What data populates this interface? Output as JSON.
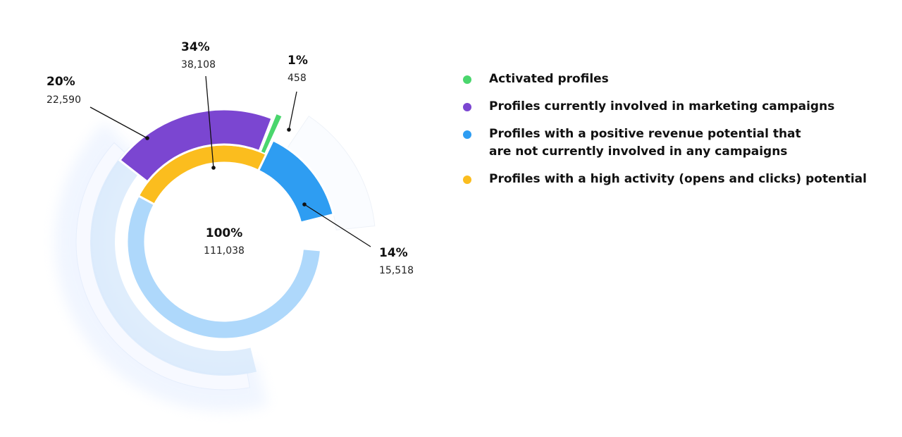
{
  "chart_data": {
    "type": "pie",
    "center": {
      "percent": "100%",
      "count": "111,038"
    },
    "total": 111038,
    "categories": [
      "Activated profiles",
      "Profiles currently involved in marketing campaigns",
      "Profiles with a positive revenue potential that are not currently involved in any campaigns",
      "Profiles with a high activity (opens and clicks) potential"
    ],
    "segments": [
      {
        "ring": "outer",
        "percent": "20%",
        "count": "22,590",
        "value": 22590,
        "color": "#7b46d1"
      },
      {
        "ring": "inner",
        "percent": "34%",
        "count": "38,108",
        "value": 38108,
        "color": "#fbbd1e"
      },
      {
        "ring": "outer",
        "percent": "1%",
        "count": "458",
        "value": 458,
        "color": "#4ad66d"
      },
      {
        "ring": "outer",
        "percent": "14%",
        "count": "15,518",
        "value": 15518,
        "color": "#2e9df2"
      }
    ],
    "legend": [
      {
        "label": "Activated profiles",
        "color": "#4ad66d"
      },
      {
        "label": "Profiles currently involved in marketing campaigns",
        "color": "#7b46d1"
      },
      {
        "label": "Profiles with a positive revenue potential that\nare not currently involved in any campaigns",
        "color": "#2e9df2"
      },
      {
        "label": "Profiles with a high activity (opens and clicks) potential",
        "color": "#fbbd1e"
      }
    ],
    "base_color": "#aed8fb"
  }
}
